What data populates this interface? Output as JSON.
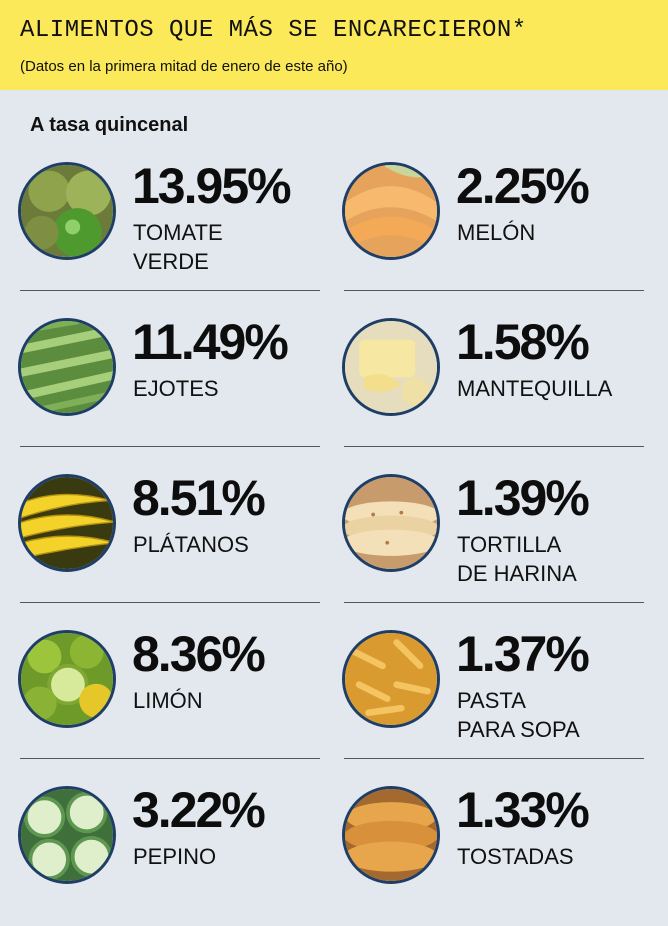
{
  "header": {
    "title": "ALIMENTOS QUE MÁS SE ENCARECIERON*",
    "subtitle": "(Datos en la primera mitad de enero de este año)"
  },
  "section_label": "A tasa quincenal",
  "colors": {
    "header_bg": "#fbe95a",
    "body_bg": "#e3e8ef",
    "circle_border": "#1f3e66"
  },
  "chart_data": {
    "type": "table",
    "title": "ALIMENTOS QUE MÁS SE ENCARECIERON*",
    "subtitle": "(Datos en la primera mitad de enero de este año)",
    "ylabel": "A tasa quincenal",
    "categories": [
      "TOMATE VERDE",
      "EJOTES",
      "PLÁTANOS",
      "LIMÓN",
      "PEPINO",
      "MELÓN",
      "MANTEQUILLA",
      "TORTILLA DE HARINA",
      "PASTA PARA SOPA",
      "TOSTADAS"
    ],
    "values": [
      13.95,
      11.49,
      8.51,
      8.36,
      3.22,
      2.25,
      1.58,
      1.39,
      1.37,
      1.33
    ]
  },
  "items": [
    {
      "pct": "13.95%",
      "name": "TOMATE\nVERDE",
      "icon": "green-tomato-icon"
    },
    {
      "pct": "11.49%",
      "name": "EJOTES",
      "icon": "green-beans-icon"
    },
    {
      "pct": "8.51%",
      "name": "PLÁTANOS",
      "icon": "banana-icon"
    },
    {
      "pct": "8.36%",
      "name": "LIMÓN",
      "icon": "lime-icon"
    },
    {
      "pct": "3.22%",
      "name": "PEPINO",
      "icon": "cucumber-icon"
    },
    {
      "pct": "2.25%",
      "name": "MELÓN",
      "icon": "melon-icon"
    },
    {
      "pct": "1.58%",
      "name": "MANTEQUILLA",
      "icon": "butter-icon"
    },
    {
      "pct": "1.39%",
      "name": "TORTILLA\nDE HARINA",
      "icon": "tortilla-icon"
    },
    {
      "pct": "1.37%",
      "name": "PASTA\nPARA SOPA",
      "icon": "pasta-icon"
    },
    {
      "pct": "1.33%",
      "name": "TOSTADAS",
      "icon": "tostadas-icon"
    }
  ]
}
